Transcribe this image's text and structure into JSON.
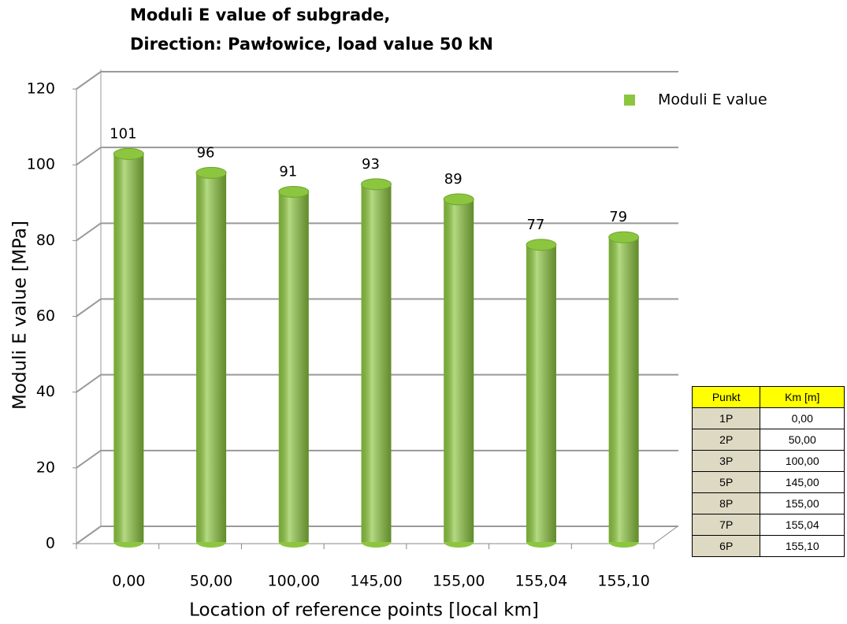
{
  "chart_data": {
    "type": "bar3d",
    "title": "Moduli E value of subgrade,",
    "subtitle": "Direction: Pawłowice, load value 50 kN",
    "x_label": "Location of reference points [local km]",
    "y_label": "Moduli E value [MPa]",
    "categories": [
      "0,00",
      "50,00",
      "100,00",
      "145,00",
      "155,00",
      "155,04",
      "155,10"
    ],
    "series": [
      {
        "name": "Moduli E value",
        "color": "#8cc63f",
        "values": [
          101,
          96,
          91,
          93,
          89,
          77,
          79
        ]
      }
    ],
    "ylim": [
      0,
      120
    ],
    "yticks": [
      0,
      20,
      40,
      60,
      80,
      100,
      120
    ],
    "grid": true,
    "legend": "upper right"
  },
  "table": {
    "header": [
      "Punkt",
      "Km [m]"
    ],
    "rows": [
      [
        "1P",
        "0,00"
      ],
      [
        "2P",
        "50,00"
      ],
      [
        "3P",
        "100,00"
      ],
      [
        "5P",
        "145,00"
      ],
      [
        "8P",
        "155,00"
      ],
      [
        "7P",
        "155,04"
      ],
      [
        "6P",
        "155,10"
      ]
    ]
  }
}
